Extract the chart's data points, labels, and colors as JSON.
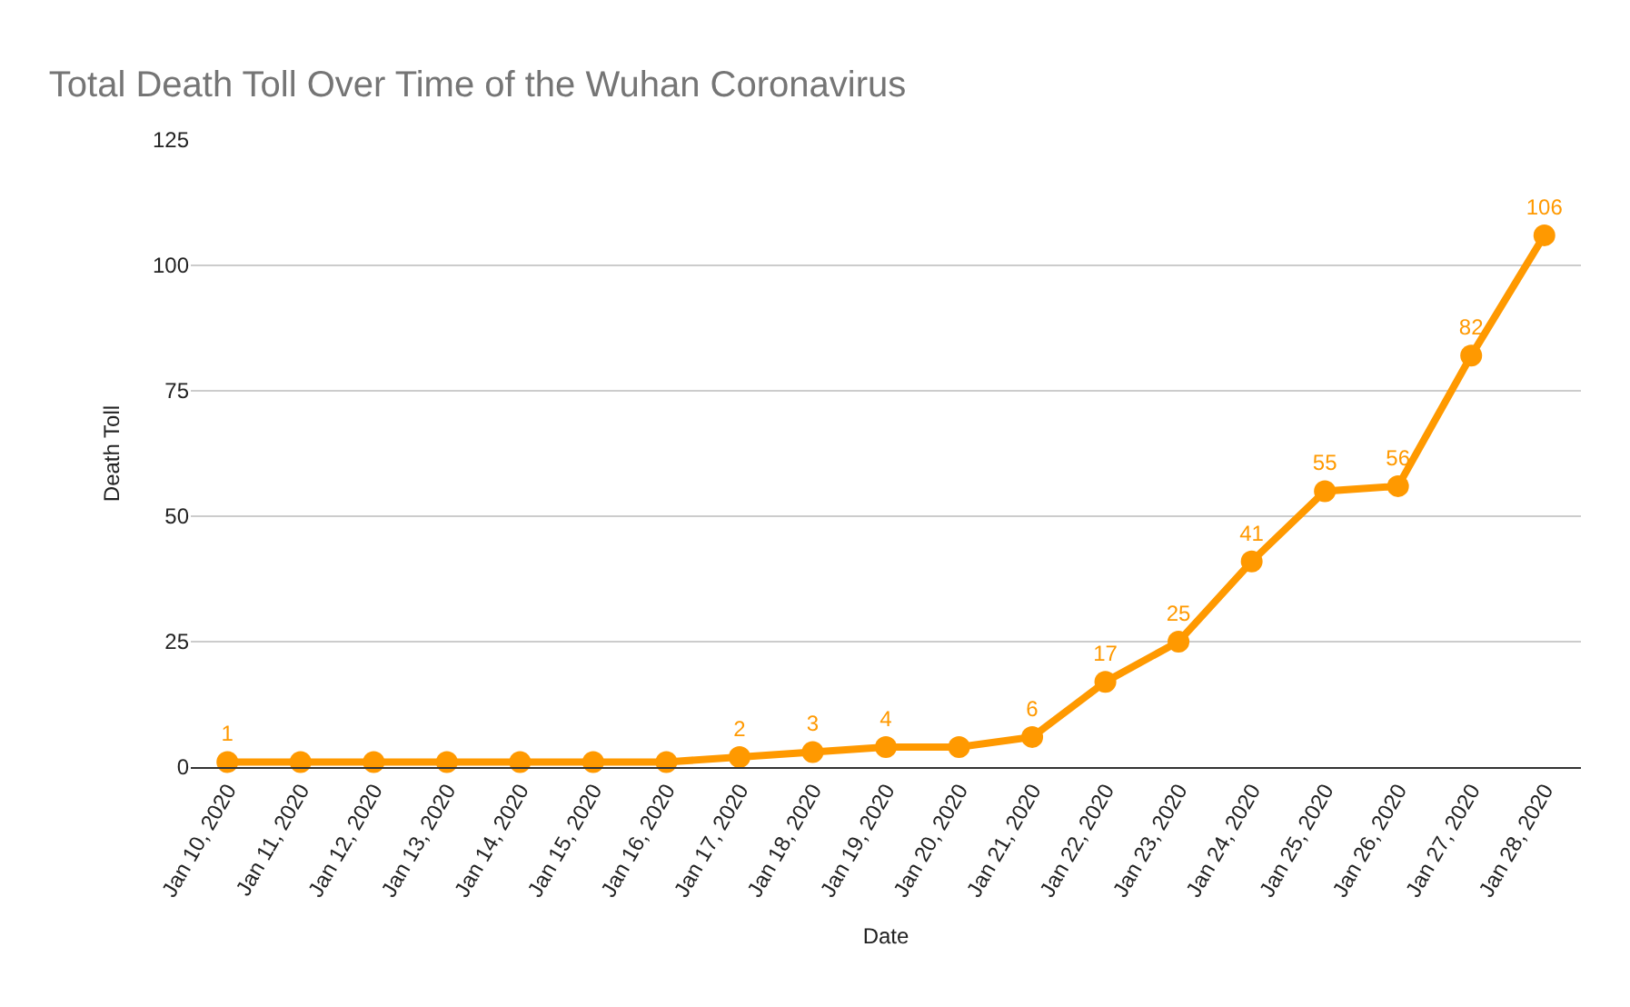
{
  "chart_data": {
    "type": "line",
    "title": "Total Death Toll Over Time of the Wuhan Coronavirus",
    "xlabel": "Date",
    "ylabel": "Death Toll",
    "categories": [
      "Jan 10, 2020",
      "Jan 11, 2020",
      "Jan 12, 2020",
      "Jan 13, 2020",
      "Jan 14, 2020",
      "Jan 15, 2020",
      "Jan 16, 2020",
      "Jan 17, 2020",
      "Jan 18, 2020",
      "Jan 19, 2020",
      "Jan 20, 2020",
      "Jan 21, 2020",
      "Jan 22, 2020",
      "Jan 23, 2020",
      "Jan 24, 2020",
      "Jan 25, 2020",
      "Jan 26, 2020",
      "Jan 27, 2020",
      "Jan 28, 2020"
    ],
    "series": [
      {
        "color": "#ff9900",
        "values": [
          1,
          1,
          1,
          1,
          1,
          1,
          1,
          2,
          3,
          4,
          4,
          6,
          17,
          25,
          41,
          55,
          56,
          82,
          106
        ],
        "value_labels": [
          "1",
          null,
          null,
          null,
          null,
          null,
          null,
          "2",
          "3",
          "4",
          null,
          "6",
          "17",
          "25",
          "41",
          "55",
          "56",
          "82",
          "106"
        ]
      }
    ],
    "ylim": [
      0,
      125
    ],
    "yticks": [
      0,
      25,
      50,
      75,
      100,
      125
    ],
    "grid": "y",
    "legend": false,
    "marker": "circle",
    "line_style": "solid"
  }
}
